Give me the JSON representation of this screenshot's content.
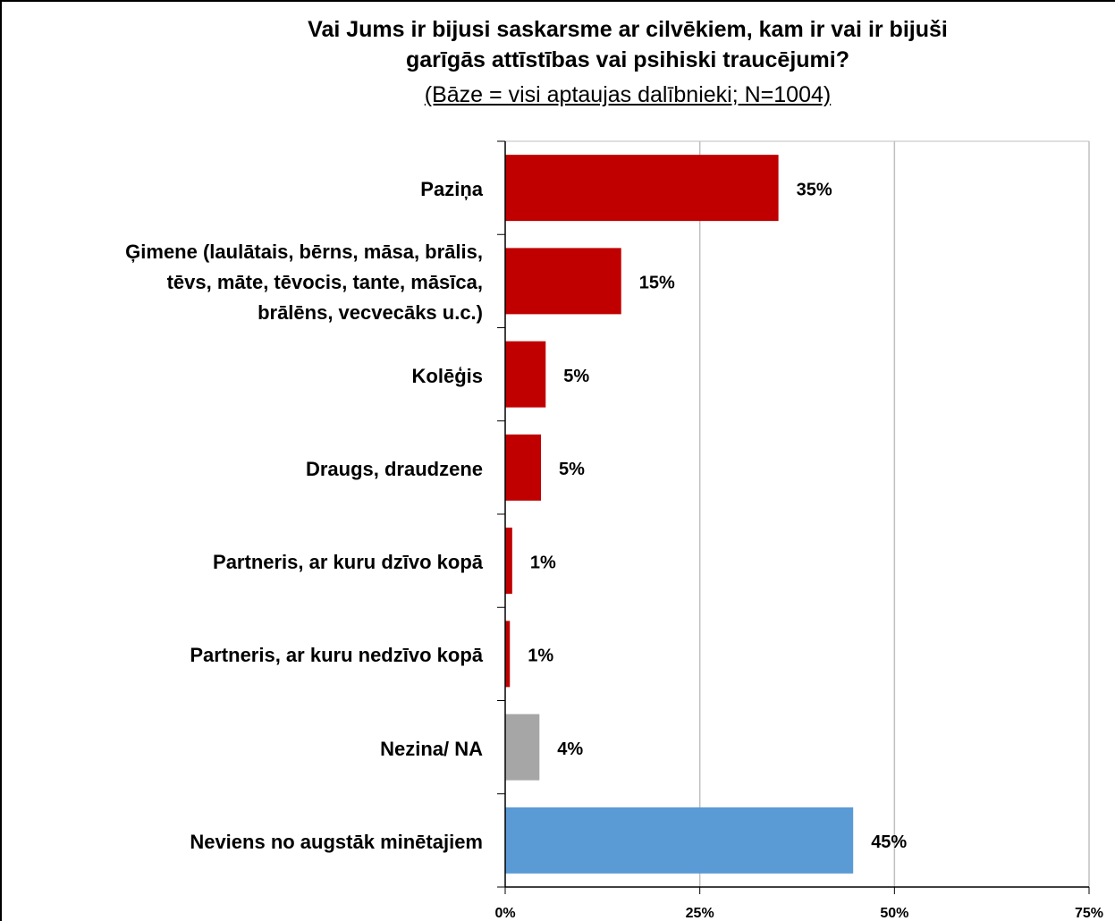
{
  "chart_data": {
    "type": "barh",
    "title": "Vai Jums ir bijusi saskarsme ar cilvēkiem, kam ir vai ir bijuši\ngarīgās attīstības vai psihiski traucējumi?",
    "subtitle": "(Bāze = visi aptaujas dalībnieki; N=1004)",
    "categories": [
      "Paziņa",
      "Ģimene (laulātais, bērns, māsa, brālis,\ntēvs, māte, tēvocis, tante, māsīca,\nbrālēns, vecvecāks u.c.)",
      "Kolēģis",
      "Draugs, draudzene",
      "Partneris, ar kuru dzīvo kopā",
      "Partneris, ar kuru nedzīvo kopā",
      "Nezina/ NA",
      "Neviens no augstāk minētajiem"
    ],
    "values": [
      35.1,
      14.9,
      5.2,
      4.6,
      0.9,
      0.6,
      4.4,
      44.7
    ],
    "value_labels": [
      "35%",
      "15%",
      "5%",
      "5%",
      "1%",
      "1%",
      "4%",
      "45%"
    ],
    "colors": [
      "#c00000",
      "#c00000",
      "#c00000",
      "#c00000",
      "#c00000",
      "#c00000",
      "#a6a6a6",
      "#5b9bd5"
    ],
    "xlim": [
      0,
      75
    ],
    "xticks": [
      {
        "value": 0,
        "label": "0%"
      },
      {
        "value": 25,
        "label": "25%"
      },
      {
        "value": 50,
        "label": "50%"
      },
      {
        "value": 75,
        "label": "75%"
      }
    ],
    "grid": true
  }
}
